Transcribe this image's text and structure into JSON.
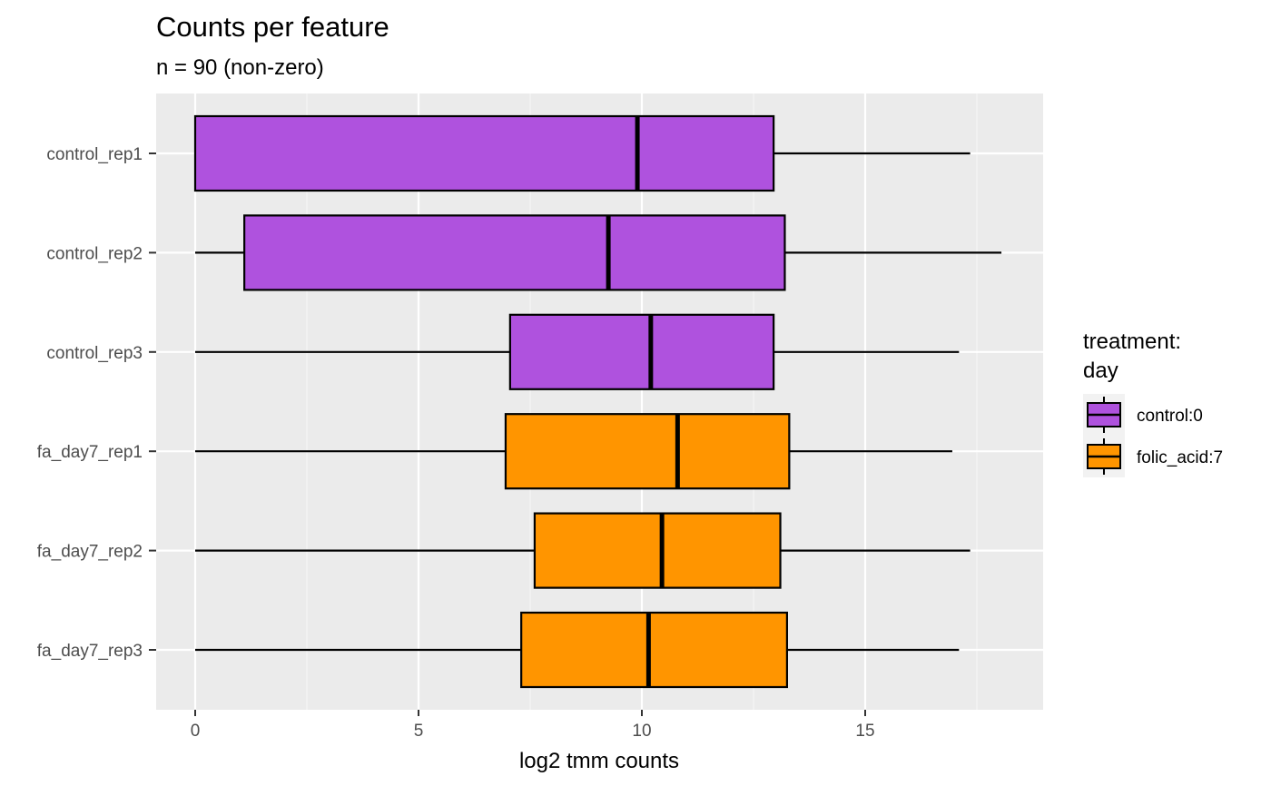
{
  "chart_data": {
    "type": "boxplot",
    "orientation": "horizontal",
    "title": "Counts per feature",
    "subtitle": "n = 90 (non-zero)",
    "xlabel": "log2 tmm counts",
    "ylabel": "",
    "xlim": [
      -0.9,
      19.0
    ],
    "x_ticks": [
      0,
      5,
      10,
      15
    ],
    "x_tick_labels": [
      "0",
      "5",
      "10",
      "15"
    ],
    "grid": true,
    "legend": {
      "title": "treatment:\nday",
      "placement": "right",
      "entries": [
        {
          "label": "control:0",
          "color": "#AF52DE"
        },
        {
          "label": "folic_acid:7",
          "color": "#FF9500"
        }
      ]
    },
    "categories": [
      "control_rep1",
      "control_rep2",
      "control_rep3",
      "fa_day7_rep1",
      "fa_day7_rep2",
      "fa_day7_rep3"
    ],
    "boxes": [
      {
        "label": "control_rep1",
        "group": "control:0",
        "whisker_low": 0.0,
        "q1": 0.0,
        "median": 9.9,
        "q3": 12.95,
        "whisker_high": 17.35
      },
      {
        "label": "control_rep2",
        "group": "control:0",
        "whisker_low": 0.0,
        "q1": 1.1,
        "median": 9.25,
        "q3": 13.2,
        "whisker_high": 18.05
      },
      {
        "label": "control_rep3",
        "group": "control:0",
        "whisker_low": 0.0,
        "q1": 7.05,
        "median": 10.2,
        "q3": 12.95,
        "whisker_high": 17.1
      },
      {
        "label": "fa_day7_rep1",
        "group": "folic_acid:7",
        "whisker_low": 0.0,
        "q1": 6.95,
        "median": 10.8,
        "q3": 13.3,
        "whisker_high": 16.95
      },
      {
        "label": "fa_day7_rep2",
        "group": "folic_acid:7",
        "whisker_low": 0.0,
        "q1": 7.6,
        "median": 10.45,
        "q3": 13.1,
        "whisker_high": 17.35
      },
      {
        "label": "fa_day7_rep3",
        "group": "folic_acid:7",
        "whisker_low": 0.0,
        "q1": 7.3,
        "median": 10.15,
        "q3": 13.25,
        "whisker_high": 17.1
      }
    ]
  },
  "colors": {
    "panel_background": "#EBEBEB",
    "grid_major": "#FFFFFF",
    "grid_minor": "#F5F5F5",
    "box_outline": "#000000"
  }
}
